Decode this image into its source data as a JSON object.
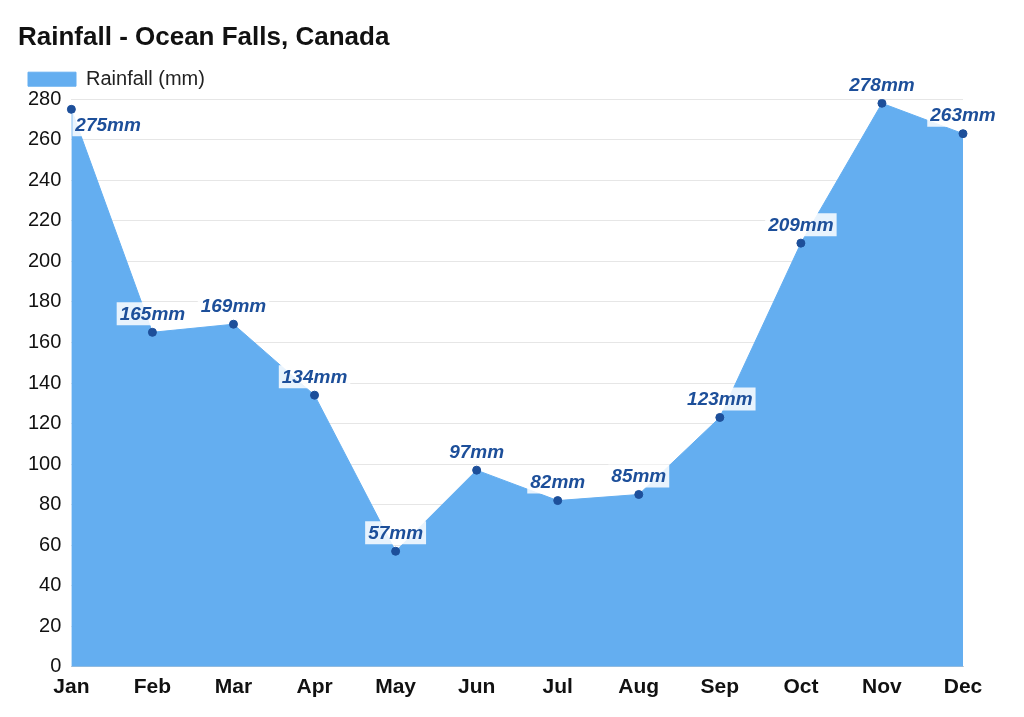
{
  "chart_data": {
    "type": "area",
    "title": "Rainfall - Ocean Falls, Canada",
    "categories": [
      "Jan",
      "Feb",
      "Mar",
      "Apr",
      "May",
      "Jun",
      "Jul",
      "Aug",
      "Sep",
      "Oct",
      "Nov",
      "Dec"
    ],
    "series": [
      {
        "name": "Rainfall (mm)",
        "color": "#64aef0",
        "values": [
          275,
          165,
          169,
          134,
          57,
          97,
          82,
          85,
          123,
          209,
          278,
          263
        ],
        "value_labels": [
          "275mm",
          "165mm",
          "169mm",
          "134mm",
          "57mm",
          "97mm",
          "82mm",
          "85mm",
          "123mm",
          "209mm",
          "278mm",
          "263mm"
        ]
      }
    ],
    "ylim": [
      0,
      280
    ],
    "yticks": [
      0,
      20,
      40,
      60,
      80,
      100,
      120,
      140,
      160,
      180,
      200,
      220,
      240,
      260,
      280
    ],
    "grid": "y",
    "legend": "top left",
    "marker": "circle"
  }
}
